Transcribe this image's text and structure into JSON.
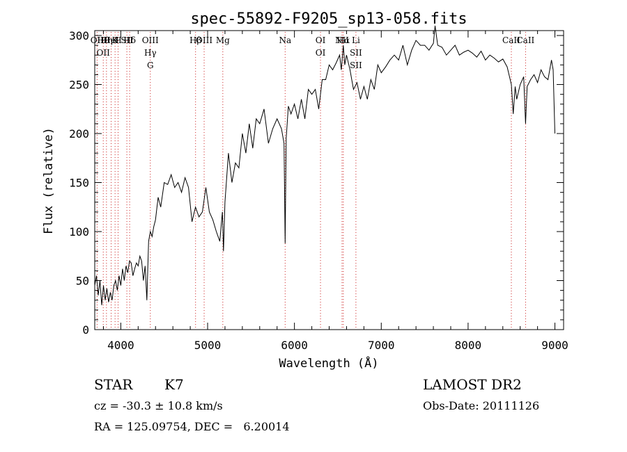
{
  "chart_data": {
    "type": "line",
    "title": "spec-55892-F9205_sp13-058.fits",
    "xlabel": "Wavelength (Å)",
    "ylabel": "Flux (relative)",
    "xlim": [
      3700,
      9100
    ],
    "ylim": [
      0,
      305
    ],
    "xticks": [
      4000,
      5000,
      6000,
      7000,
      8000,
      9000
    ],
    "yticks": [
      0,
      50,
      100,
      150,
      200,
      250,
      300
    ],
    "grid": false,
    "legend": "none",
    "colors": {
      "spectrum": "#000000",
      "line_markers": "#cc2222"
    },
    "series": [
      {
        "x": [
          3700,
          3720,
          3740,
          3760,
          3780,
          3800,
          3820,
          3840,
          3860,
          3880,
          3900,
          3920,
          3940,
          3960,
          3980,
          4000,
          4020,
          4040,
          4060,
          4080,
          4100,
          4120,
          4140,
          4160,
          4180,
          4200,
          4220,
          4240,
          4260,
          4280,
          4300,
          4320,
          4340,
          4360,
          4380,
          4400,
          4430,
          4460,
          4500,
          4540,
          4580,
          4620,
          4660,
          4700,
          4740,
          4780,
          4820,
          4860,
          4880,
          4900,
          4940,
          4980,
          5020,
          5060,
          5100,
          5140,
          5170,
          5183,
          5200,
          5240,
          5280,
          5320,
          5360,
          5400,
          5440,
          5480,
          5520,
          5560,
          5600,
          5650,
          5700,
          5750,
          5800,
          5850,
          5880,
          5893,
          5905,
          5930,
          5960,
          6000,
          6040,
          6080,
          6120,
          6160,
          6200,
          6240,
          6280,
          6320,
          6360,
          6400,
          6440,
          6480,
          6520,
          6540,
          6563,
          6580,
          6600,
          6640,
          6680,
          6720,
          6760,
          6800,
          6840,
          6880,
          6920,
          6960,
          7000,
          7050,
          7100,
          7150,
          7200,
          7250,
          7300,
          7350,
          7400,
          7450,
          7500,
          7550,
          7600,
          7620,
          7650,
          7700,
          7750,
          7800,
          7850,
          7900,
          7950,
          8000,
          8050,
          8100,
          8150,
          8200,
          8250,
          8300,
          8350,
          8400,
          8450,
          8498,
          8520,
          8542,
          8560,
          8600,
          8640,
          8662,
          8680,
          8720,
          8760,
          8800,
          8840,
          8880,
          8920,
          8960,
          8980,
          9000
        ],
        "values": [
          45,
          55,
          35,
          50,
          25,
          45,
          30,
          42,
          28,
          38,
          30,
          45,
          50,
          40,
          55,
          45,
          62,
          50,
          65,
          58,
          70,
          68,
          55,
          62,
          68,
          65,
          75,
          70,
          50,
          65,
          30,
          90,
          100,
          95,
          105,
          112,
          135,
          125,
          150,
          148,
          158,
          145,
          150,
          140,
          155,
          145,
          110,
          125,
          120,
          115,
          120,
          145,
          120,
          112,
          100,
          90,
          120,
          80,
          130,
          180,
          150,
          170,
          165,
          200,
          180,
          210,
          185,
          215,
          210,
          225,
          190,
          205,
          215,
          205,
          190,
          88,
          195,
          228,
          220,
          230,
          215,
          235,
          215,
          245,
          240,
          245,
          225,
          255,
          255,
          270,
          265,
          272,
          280,
          265,
          290,
          270,
          280,
          265,
          245,
          252,
          235,
          248,
          235,
          255,
          245,
          270,
          262,
          268,
          275,
          280,
          275,
          290,
          270,
          285,
          295,
          290,
          290,
          285,
          292,
          310,
          290,
          288,
          280,
          285,
          290,
          280,
          283,
          285,
          282,
          278,
          284,
          275,
          280,
          277,
          273,
          276,
          268,
          250,
          220,
          248,
          235,
          250,
          258,
          210,
          248,
          255,
          260,
          252,
          265,
          258,
          255,
          275,
          265,
          200
        ]
      }
    ],
    "lines_markers": [
      {
        "labels": [
          "Hθ",
          "OII"
        ],
        "x": 3798
      },
      {
        "labels": [
          "OII"
        ],
        "x": 3727
      },
      {
        "labels": [
          "K"
        ],
        "x": 3934
      },
      {
        "labels": [
          "HeI"
        ],
        "x": 3889
      },
      {
        "labels": [
          "Hη"
        ],
        "x": 3835
      },
      {
        "labels": [
          "H"
        ],
        "x": 3969
      },
      {
        "labels": [
          "Hδ"
        ],
        "x": 4102
      },
      {
        "labels": [
          "SII"
        ],
        "x": 4070
      },
      {
        "labels": [
          "OIII",
          "Hγ",
          "G"
        ],
        "x": 4340
      },
      {
        "labels": [
          "OIII"
        ],
        "x": 4960
      },
      {
        "labels": [
          "Hβ"
        ],
        "x": 4861
      },
      {
        "labels": [
          "Mg"
        ],
        "x": 5175
      },
      {
        "labels": [
          "Na"
        ],
        "x": 5893
      },
      {
        "labels": [
          "OI",
          "OI"
        ],
        "x": 6300
      },
      {
        "labels": [
          "Hα"
        ],
        "x": 6563
      },
      {
        "labels": [
          "NII"
        ],
        "x": 6548
      },
      {
        "labels": [
          "Li",
          "SII",
          "SII"
        ],
        "x": 6708
      },
      {
        "labels": [
          "CaII"
        ],
        "x": 8498
      },
      {
        "labels": [
          "CaII"
        ],
        "x": 8662
      }
    ]
  },
  "info": {
    "object_class": "STAR",
    "subclass": "K7",
    "survey": "LAMOST DR2",
    "cz": "cz = -30.3 ± 10.8 km/s",
    "obs_date": "Obs-Date: 20111126",
    "coords": "RA = 125.09754, DEC =   6.20014"
  }
}
